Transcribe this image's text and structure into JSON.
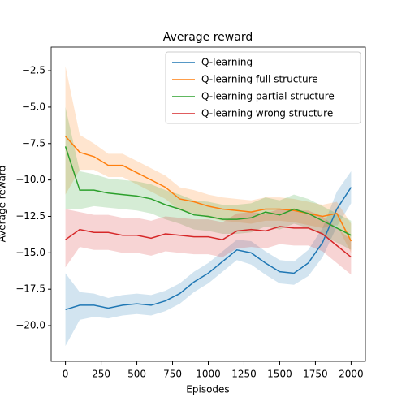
{
  "chart_data": {
    "type": "line",
    "title": "Average reward",
    "xlabel": "Episodes",
    "ylabel": "Average reward",
    "x": [
      0,
      100,
      200,
      300,
      400,
      500,
      600,
      700,
      800,
      900,
      1000,
      1100,
      1200,
      1300,
      1400,
      1500,
      1600,
      1700,
      1800,
      1900,
      2000
    ],
    "xlim": [
      -100,
      2100
    ],
    "xticks": [
      0,
      250,
      500,
      750,
      1000,
      1250,
      1500,
      1750,
      2000
    ],
    "ylim": [
      -22.45,
      -0.88
    ],
    "yticks": [
      {
        "value": -2.5,
        "label": "−2.5"
      },
      {
        "value": -5,
        "label": "−5.0"
      },
      {
        "value": -7.5,
        "label": "−7.5"
      },
      {
        "value": -10,
        "label": "−10.0"
      },
      {
        "value": -12.5,
        "label": "−12.5"
      },
      {
        "value": -15,
        "label": "−15.0"
      },
      {
        "value": -17.5,
        "label": "−17.5"
      },
      {
        "value": -20,
        "label": "−20.0"
      }
    ],
    "legend": "upper right",
    "series": [
      {
        "name": "Q-learning",
        "color": "#1f77b4",
        "values": [
          -18.9,
          -18.6,
          -18.6,
          -18.8,
          -18.6,
          -18.5,
          -18.6,
          -18.3,
          -17.8,
          -17.0,
          -16.4,
          -15.6,
          -14.8,
          -15.0,
          -15.7,
          -16.3,
          -16.4,
          -15.7,
          -14.3,
          -12.0,
          -10.5
        ],
        "lower": [
          -21.4,
          -19.6,
          -19.4,
          -19.5,
          -19.3,
          -19.2,
          -19.3,
          -19.0,
          -18.5,
          -17.7,
          -17.1,
          -16.3,
          -15.5,
          -15.8,
          -16.5,
          -17.1,
          -17.2,
          -16.6,
          -15.3,
          -13.2,
          -11.6
        ],
        "upper": [
          -16.4,
          -17.7,
          -17.8,
          -18.1,
          -17.9,
          -17.8,
          -17.9,
          -17.6,
          -17.1,
          -16.3,
          -15.7,
          -14.9,
          -14.1,
          -14.2,
          -14.9,
          -15.5,
          -15.6,
          -14.8,
          -13.3,
          -10.8,
          -9.4
        ]
      },
      {
        "name": "Q-learning full structure",
        "color": "#ff7f0e",
        "values": [
          -7.0,
          -8.1,
          -8.4,
          -9.0,
          -9.0,
          -9.5,
          -10.0,
          -10.5,
          -11.3,
          -11.5,
          -11.8,
          -12.0,
          -12.1,
          -12.2,
          -12.0,
          -12.0,
          -12.1,
          -12.3,
          -12.5,
          -12.3,
          -14.2
        ],
        "lower": [
          -11.0,
          -9.3,
          -9.3,
          -9.8,
          -9.8,
          -10.3,
          -10.8,
          -11.3,
          -12.1,
          -12.3,
          -12.6,
          -12.8,
          -12.9,
          -13.0,
          -12.8,
          -12.8,
          -12.9,
          -13.1,
          -13.3,
          -13.1,
          -15.0
        ],
        "upper": [
          -2.2,
          -6.9,
          -7.5,
          -8.2,
          -8.2,
          -8.7,
          -9.2,
          -9.7,
          -10.5,
          -10.7,
          -11.0,
          -11.2,
          -11.3,
          -11.4,
          -11.2,
          -11.2,
          -11.3,
          -11.5,
          -11.7,
          -11.5,
          -13.0
        ]
      },
      {
        "name": "Q-learning partial structure",
        "color": "#2ca02c",
        "values": [
          -7.7,
          -10.7,
          -10.7,
          -10.9,
          -11.0,
          -11.1,
          -11.3,
          -11.7,
          -12.0,
          -12.4,
          -12.5,
          -12.7,
          -12.7,
          -12.6,
          -12.2,
          -12.4,
          -12.0,
          -12.3,
          -12.8,
          -13.3,
          -13.8
        ],
        "lower": [
          -12.0,
          -12.0,
          -11.8,
          -11.9,
          -12.0,
          -12.1,
          -12.3,
          -12.7,
          -13.0,
          -13.4,
          -13.5,
          -13.7,
          -13.7,
          -13.6,
          -13.2,
          -13.4,
          -13.0,
          -13.3,
          -13.8,
          -14.3,
          -14.8
        ],
        "upper": [
          -5.0,
          -9.4,
          -9.6,
          -9.9,
          -10.0,
          -10.1,
          -10.3,
          -10.7,
          -11.0,
          -11.4,
          -11.5,
          -11.7,
          -11.7,
          -11.6,
          -11.2,
          -11.4,
          -11.0,
          -11.3,
          -11.8,
          -12.3,
          -12.8
        ]
      },
      {
        "name": "Q-learning wrong structure",
        "color": "#d62728",
        "values": [
          -14.1,
          -13.4,
          -13.6,
          -13.6,
          -13.8,
          -13.8,
          -14.0,
          -13.7,
          -13.8,
          -13.9,
          -13.9,
          -14.1,
          -13.5,
          -13.4,
          -13.5,
          -13.2,
          -13.3,
          -13.3,
          -13.7,
          -14.5,
          -15.3
        ],
        "lower": [
          -16.0,
          -14.6,
          -14.8,
          -14.8,
          -15.0,
          -15.0,
          -15.2,
          -14.9,
          -15.0,
          -15.1,
          -15.1,
          -15.3,
          -14.7,
          -14.6,
          -14.7,
          -14.4,
          -14.5,
          -14.5,
          -14.9,
          -15.7,
          -16.5
        ],
        "upper": [
          -12.0,
          -12.2,
          -12.4,
          -12.4,
          -12.6,
          -12.6,
          -12.8,
          -12.5,
          -12.6,
          -12.7,
          -12.7,
          -12.9,
          -12.3,
          -12.2,
          -12.3,
          -12.0,
          -12.1,
          -12.1,
          -12.5,
          -13.3,
          -14.1
        ]
      }
    ]
  }
}
